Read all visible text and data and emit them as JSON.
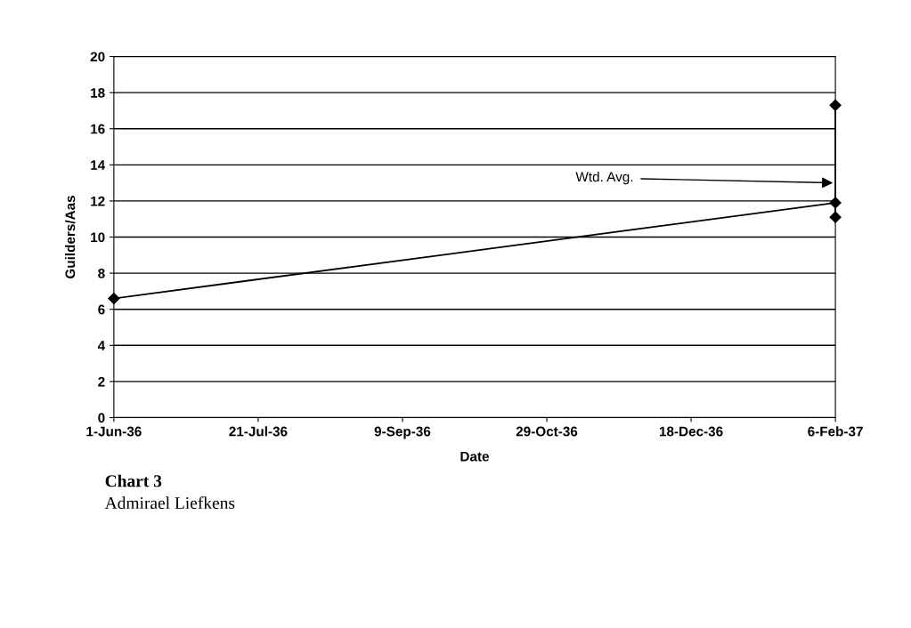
{
  "chart_data": {
    "type": "line",
    "title": "Chart 3",
    "subtitle": "Admirael Liefkens",
    "xlabel": "Date",
    "ylabel": "Guilders/Aas",
    "series": [
      {
        "color": "#000000",
        "x": [
          "1936-06-01",
          "1937-02-06"
        ],
        "values": [
          6.6,
          11.9
        ]
      },
      {
        "color": "#000000",
        "x": [
          "1937-02-06",
          "1937-02-06"
        ],
        "values": [
          11.1,
          17.3
        ]
      }
    ],
    "xlim": [
      "1936-06-01",
      "1937-02-06"
    ],
    "xticks": [
      {
        "value": "1936-06-01",
        "label": "1-Jun-36"
      },
      {
        "value": "1936-07-21",
        "label": "21-Jul-36"
      },
      {
        "value": "1936-09-09",
        "label": "9-Sep-36"
      },
      {
        "value": "1936-10-29",
        "label": "29-Oct-36"
      },
      {
        "value": "1936-12-18",
        "label": "18-Dec-36"
      },
      {
        "value": "1937-02-06",
        "label": "6-Feb-37"
      }
    ],
    "ylim": [
      0,
      20
    ],
    "yticks": [
      0,
      2,
      4,
      6,
      8,
      10,
      12,
      14,
      16,
      18,
      20
    ],
    "grid": "y",
    "marker": "diamond",
    "line_style": "solid",
    "annotations": [
      {
        "text": "Wtd. Avg.",
        "x": "1937-02-06",
        "y": 13
      }
    ]
  }
}
